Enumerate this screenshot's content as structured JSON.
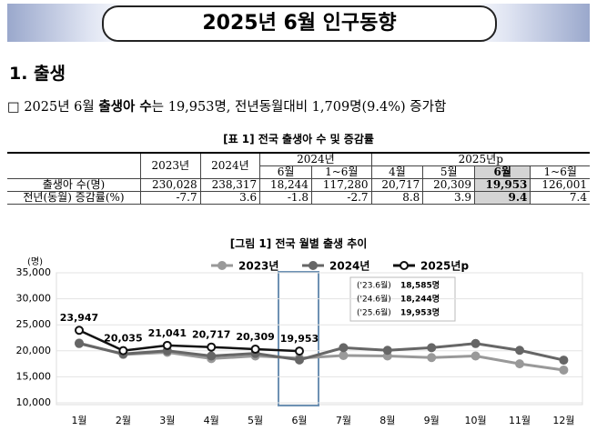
{
  "header": {
    "title": "2025년 6월 인구동향"
  },
  "section": {
    "heading": "1. 출생",
    "summary": {
      "marker": "□",
      "parts": [
        "2025년 6월 ",
        "출생아 수",
        "는 19,953명, 전년동월대비 1,709명(9.4%) 증가함"
      ]
    }
  },
  "table": {
    "caption": "[표 1] 전국 출생아 수 및 증감률",
    "header_top": [
      "2023년",
      "2024년",
      "2024년",
      "2025년p"
    ],
    "header_sub": [
      "6월",
      "1~6월",
      "4월",
      "5월",
      "6월",
      "1~6월"
    ],
    "rows": [
      [
        "출생아 수(명)",
        "230,028",
        "238,317",
        "18,244",
        "117,280",
        "20,717",
        "20,309",
        "19,953",
        "126,001"
      ],
      [
        "전년(동월) 증감률(%)",
        "-7.7",
        "3.6",
        "-1.8",
        "-2.7",
        "8.8",
        "3.9",
        "9.4",
        "7.4"
      ]
    ]
  },
  "figure": {
    "caption": "[그림 1] 전국 월별 출생 추이",
    "chart_data": {
      "type": "line",
      "y_unit": "(명)",
      "categories": [
        "1월",
        "2월",
        "3월",
        "4월",
        "5월",
        "6월",
        "7월",
        "8월",
        "9월",
        "10월",
        "11월",
        "12월"
      ],
      "series": [
        {
          "name": "2023년",
          "color": "#999999",
          "values": [
            21500,
            19300,
            19700,
            18500,
            19000,
            18585,
            19100,
            19000,
            18700,
            19000,
            17500,
            16300
          ]
        },
        {
          "name": "2024년",
          "color": "#666666",
          "values": [
            21400,
            19400,
            20000,
            19000,
            19500,
            18244,
            20600,
            20100,
            20600,
            21400,
            20100,
            18200
          ]
        },
        {
          "name": "2025년p",
          "color": "#111111",
          "values": [
            23947,
            20035,
            21041,
            20717,
            20309,
            19953,
            null,
            null,
            null,
            null,
            null,
            null
          ],
          "value_labels": [
            "23,947",
            "20,035",
            "21,041",
            "20,717",
            "20,309",
            "19,953",
            null,
            null,
            null,
            null,
            null,
            null
          ]
        }
      ],
      "ylim": [
        10000,
        35000
      ],
      "yticks": [
        {
          "value": 10000,
          "label": "10,000"
        },
        {
          "value": 15000,
          "label": "15,000"
        },
        {
          "value": 20000,
          "label": "20,000"
        },
        {
          "value": 25000,
          "label": "25,000"
        },
        {
          "value": 30000,
          "label": "30,000"
        },
        {
          "value": 35000,
          "label": "35,000"
        }
      ],
      "annotation": [
        [
          "('23.6월)",
          "18,585명"
        ],
        [
          "('24.6월)",
          "18,244명"
        ],
        [
          "('25.6월)",
          "19,953명"
        ]
      ]
    }
  }
}
